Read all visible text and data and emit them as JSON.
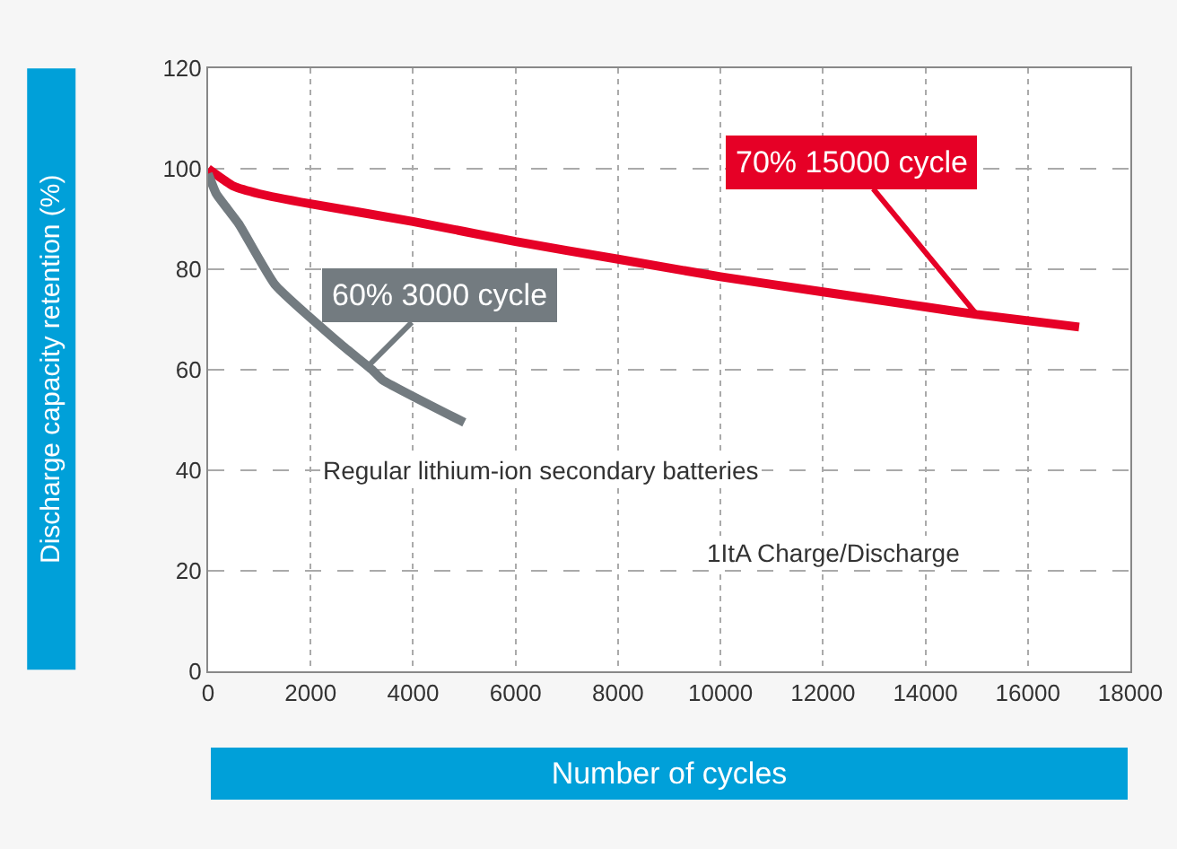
{
  "chart_data": {
    "type": "line",
    "xlabel": "Number of cycles",
    "ylabel": "Discharge capacity retention (%)",
    "xlim": [
      0,
      18000
    ],
    "xticks": [
      0,
      2000,
      4000,
      6000,
      8000,
      10000,
      12000,
      14000,
      16000,
      18000
    ],
    "ylim": [
      0,
      120
    ],
    "yticks": [
      0,
      20,
      40,
      60,
      80,
      100,
      120
    ],
    "grid": true,
    "legend": false,
    "marker": "none",
    "line_style": "solid",
    "series": [
      {
        "color": "#e60026",
        "x": [
          0,
          500,
          1000,
          2000,
          4000,
          6000,
          8000,
          10000,
          12000,
          14000,
          15000,
          17000
        ],
        "values": [
          100,
          96.5,
          95,
          93,
          89.5,
          85.5,
          82,
          78.5,
          75.5,
          72.5,
          71,
          68.5
        ]
      },
      {
        "name": "Regular lithium-ion secondary batteries",
        "color": "#737b80",
        "x": [
          0,
          160,
          600,
          1300,
          2600,
          3200,
          3400,
          5000
        ],
        "values": [
          99,
          95,
          89,
          77,
          65,
          60,
          58,
          49.5
        ]
      }
    ],
    "annotations": [
      {
        "text": "70% 15000 cycle",
        "x": 15000,
        "y": 71
      },
      {
        "text": "60% 3000 cycle",
        "x": 3100,
        "y": 60.5
      },
      "1ItA Charge/Discharge"
    ]
  }
}
